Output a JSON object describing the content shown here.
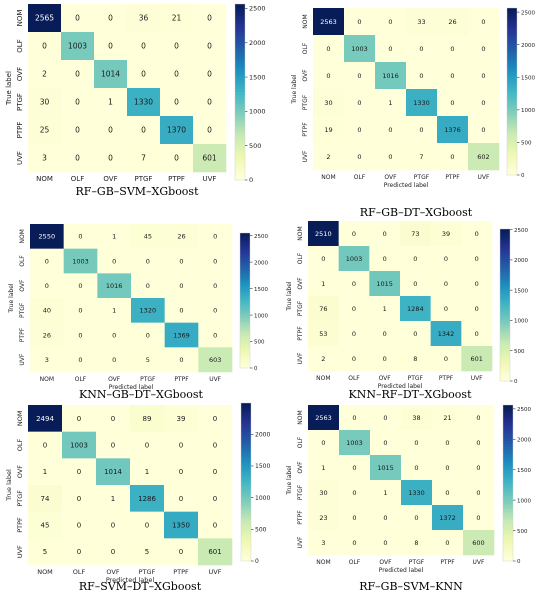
{
  "chart_data": [
    {
      "type": "heatmap",
      "caption": "RF–GB–SVM–XGboost",
      "xlabel": "",
      "ylabel": "True label",
      "categories": [
        "NOM",
        "OLF",
        "OVF",
        "PTGF",
        "PTPF",
        "UVF"
      ],
      "matrix": [
        [
          2565,
          0,
          0,
          36,
          21,
          0
        ],
        [
          0,
          1003,
          0,
          0,
          0,
          0
        ],
        [
          2,
          0,
          1014,
          0,
          0,
          0
        ],
        [
          30,
          0,
          1,
          1330,
          0,
          0
        ],
        [
          25,
          0,
          0,
          0,
          1370,
          0
        ],
        [
          3,
          0,
          0,
          7,
          0,
          601
        ]
      ],
      "colorbar_ticks": [
        0,
        500,
        1000,
        1500,
        2000,
        2500
      ],
      "colorbar_range": [
        0,
        2565
      ]
    },
    {
      "type": "heatmap",
      "caption": "RF–GB–DT–XGboost",
      "xlabel": "Predicted label",
      "ylabel": "True label",
      "categories": [
        "NOM",
        "OLF",
        "OVF",
        "PTGF",
        "PTPF",
        "UVF"
      ],
      "matrix": [
        [
          2563,
          0,
          0,
          33,
          26,
          0
        ],
        [
          0,
          1003,
          0,
          0,
          0,
          0
        ],
        [
          0,
          0,
          1016,
          0,
          0,
          0
        ],
        [
          30,
          0,
          1,
          1330,
          0,
          0
        ],
        [
          19,
          0,
          0,
          0,
          1376,
          0
        ],
        [
          2,
          0,
          0,
          7,
          0,
          602
        ]
      ],
      "colorbar_ticks": [
        0,
        500,
        1000,
        1500,
        2000,
        2500
      ],
      "colorbar_range": [
        0,
        2563
      ]
    },
    {
      "type": "heatmap",
      "caption": "KNN–GB–DT–XGboost",
      "xlabel": "Predicted label",
      "ylabel": "True label",
      "categories": [
        "NOM",
        "OLF",
        "OVF",
        "PTGF",
        "PTPF",
        "UVF"
      ],
      "matrix": [
        [
          2550,
          0,
          1,
          45,
          26,
          0
        ],
        [
          0,
          1003,
          0,
          0,
          0,
          0
        ],
        [
          0,
          0,
          1016,
          0,
          0,
          0
        ],
        [
          40,
          0,
          1,
          1320,
          0,
          0
        ],
        [
          26,
          0,
          0,
          0,
          1369,
          0
        ],
        [
          3,
          0,
          0,
          5,
          0,
          603
        ]
      ],
      "colorbar_ticks": [
        0,
        500,
        1000,
        1500,
        2000,
        2500
      ],
      "colorbar_range": [
        0,
        2550
      ]
    },
    {
      "type": "heatmap",
      "caption": "KNN–RF–DT–XGboost",
      "xlabel": "Predicted label",
      "ylabel": "True label",
      "categories": [
        "NOM",
        "OLF",
        "OVF",
        "PTGF",
        "PTPF",
        "UVF"
      ],
      "matrix": [
        [
          2510,
          0,
          0,
          73,
          39,
          0
        ],
        [
          0,
          1003,
          0,
          0,
          0,
          0
        ],
        [
          1,
          0,
          1015,
          0,
          0,
          0
        ],
        [
          76,
          0,
          1,
          1284,
          0,
          0
        ],
        [
          53,
          0,
          0,
          0,
          1342,
          0
        ],
        [
          2,
          0,
          0,
          8,
          0,
          601
        ]
      ],
      "colorbar_ticks": [
        0,
        500,
        1000,
        1500,
        2000,
        2500
      ],
      "colorbar_range": [
        0,
        2510
      ]
    },
    {
      "type": "heatmap",
      "caption": "RF–SVM–DT–XGboost",
      "xlabel": "Predicted label",
      "ylabel": "True label",
      "categories": [
        "NOM",
        "OLF",
        "OVF",
        "PTGF",
        "PTPF",
        "UVF"
      ],
      "matrix": [
        [
          2494,
          0,
          0,
          89,
          39,
          0
        ],
        [
          0,
          1003,
          0,
          0,
          0,
          0
        ],
        [
          1,
          0,
          1014,
          1,
          0,
          0
        ],
        [
          74,
          0,
          1,
          1286,
          0,
          0
        ],
        [
          45,
          0,
          0,
          0,
          1350,
          0
        ],
        [
          5,
          0,
          0,
          5,
          0,
          601
        ]
      ],
      "colorbar_ticks": [
        0,
        500,
        1000,
        1500,
        2000
      ],
      "colorbar_range": [
        0,
        2494
      ]
    },
    {
      "type": "heatmap",
      "caption": "RF–GB–SVM–KNN",
      "xlabel": "Predicted label",
      "ylabel": "True label",
      "categories": [
        "NOM",
        "OLF",
        "OVF",
        "PTGF",
        "PTPF",
        "UVF"
      ],
      "matrix": [
        [
          2563,
          0,
          0,
          38,
          21,
          0
        ],
        [
          0,
          1003,
          0,
          0,
          0,
          0
        ],
        [
          1,
          0,
          1015,
          0,
          0,
          0
        ],
        [
          30,
          0,
          1,
          1330,
          0,
          0
        ],
        [
          23,
          0,
          0,
          0,
          1372,
          0
        ],
        [
          3,
          0,
          0,
          8,
          0,
          600
        ]
      ],
      "colorbar_ticks": [
        0,
        500,
        1000,
        1500,
        2000,
        2500
      ],
      "colorbar_range": [
        0,
        2563
      ]
    }
  ]
}
